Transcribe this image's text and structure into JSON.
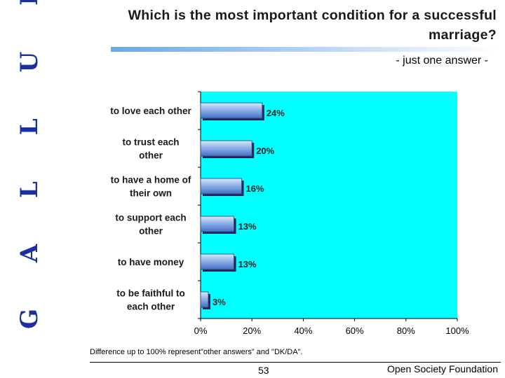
{
  "side_logo": "G A L L U P",
  "title": "Which is the most important condition for a successful marriage?",
  "subtitle": "- just one answer -",
  "chart_data": {
    "type": "bar",
    "orientation": "horizontal",
    "categories": [
      [
        "to love each other"
      ],
      [
        "to trust each",
        "other"
      ],
      [
        "to have a home of",
        "their own"
      ],
      [
        "to support each",
        "other"
      ],
      [
        "to have money"
      ],
      [
        "to be faithful to",
        "each other"
      ]
    ],
    "values": [
      24,
      20,
      16,
      13,
      13,
      3
    ],
    "value_labels": [
      "24%",
      "20%",
      "16%",
      "13%",
      "13%",
      "3%"
    ],
    "x_ticks": [
      "0%",
      "20%",
      "40%",
      "60%",
      "80%",
      "100%"
    ],
    "xlim": [
      0,
      100
    ],
    "title": "",
    "xlabel": "",
    "ylabel": "",
    "grid": false,
    "plot_background": "#00ffff",
    "bar_color": "#5a86d6"
  },
  "footnote": "Difference up to 100% represent”other answers” and \"DK/DA\".",
  "page_number": "53",
  "organization": "Open Society Foundation"
}
